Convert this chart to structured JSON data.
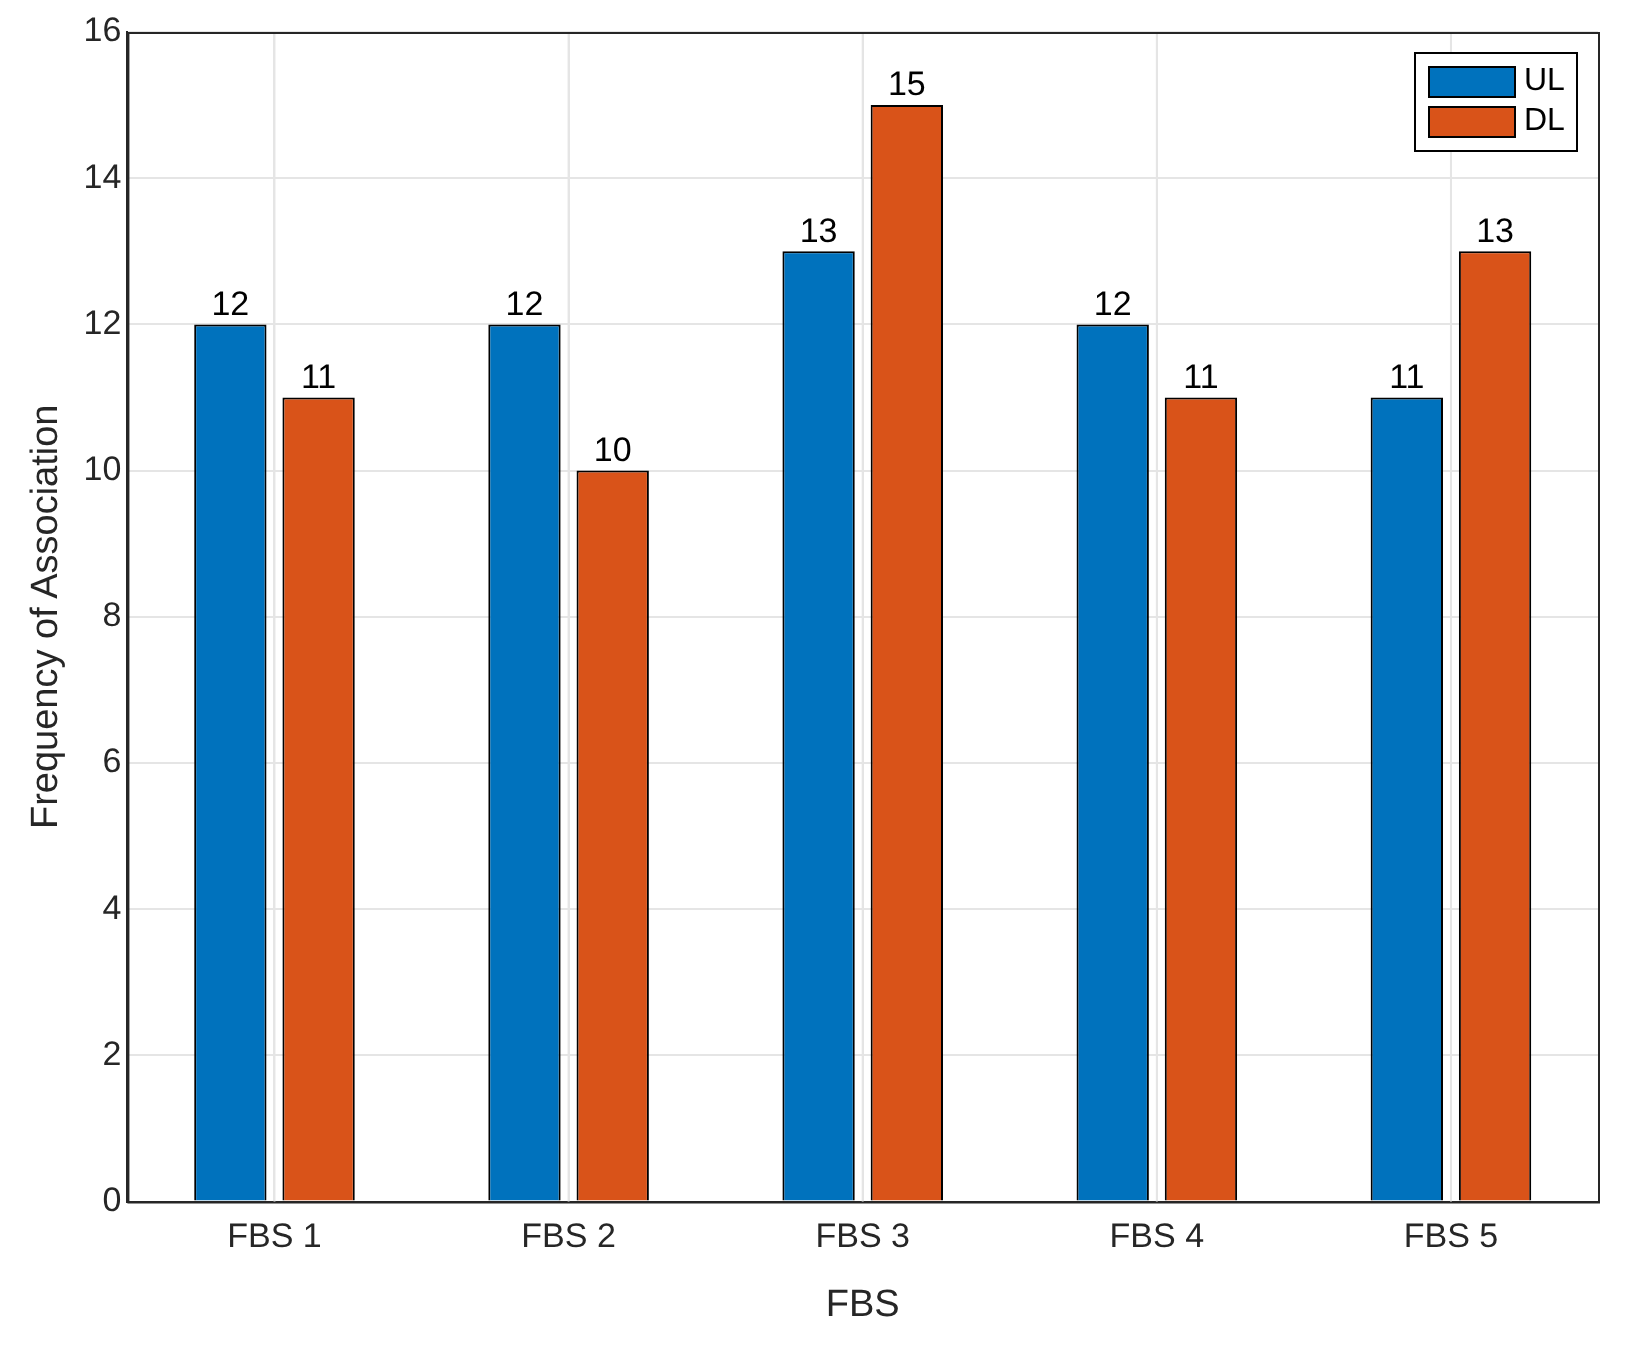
{
  "chart_data": {
    "type": "bar",
    "xlabel": "FBS",
    "ylabel": "Frequency of Association",
    "categories": [
      "FBS 1",
      "FBS 2",
      "FBS 3",
      "FBS 4",
      "FBS 5"
    ],
    "series": [
      {
        "name": "UL",
        "color": "#0072bd",
        "values": [
          12,
          12,
          13,
          12,
          11
        ]
      },
      {
        "name": "DL",
        "color": "#d95319",
        "values": [
          11,
          10,
          15,
          11,
          13
        ]
      }
    ],
    "ylim": [
      0,
      16
    ],
    "yticks": [
      0,
      2,
      4,
      6,
      8,
      10,
      12,
      14,
      16
    ],
    "grid": true,
    "legend": "top right",
    "data_labels": true
  }
}
